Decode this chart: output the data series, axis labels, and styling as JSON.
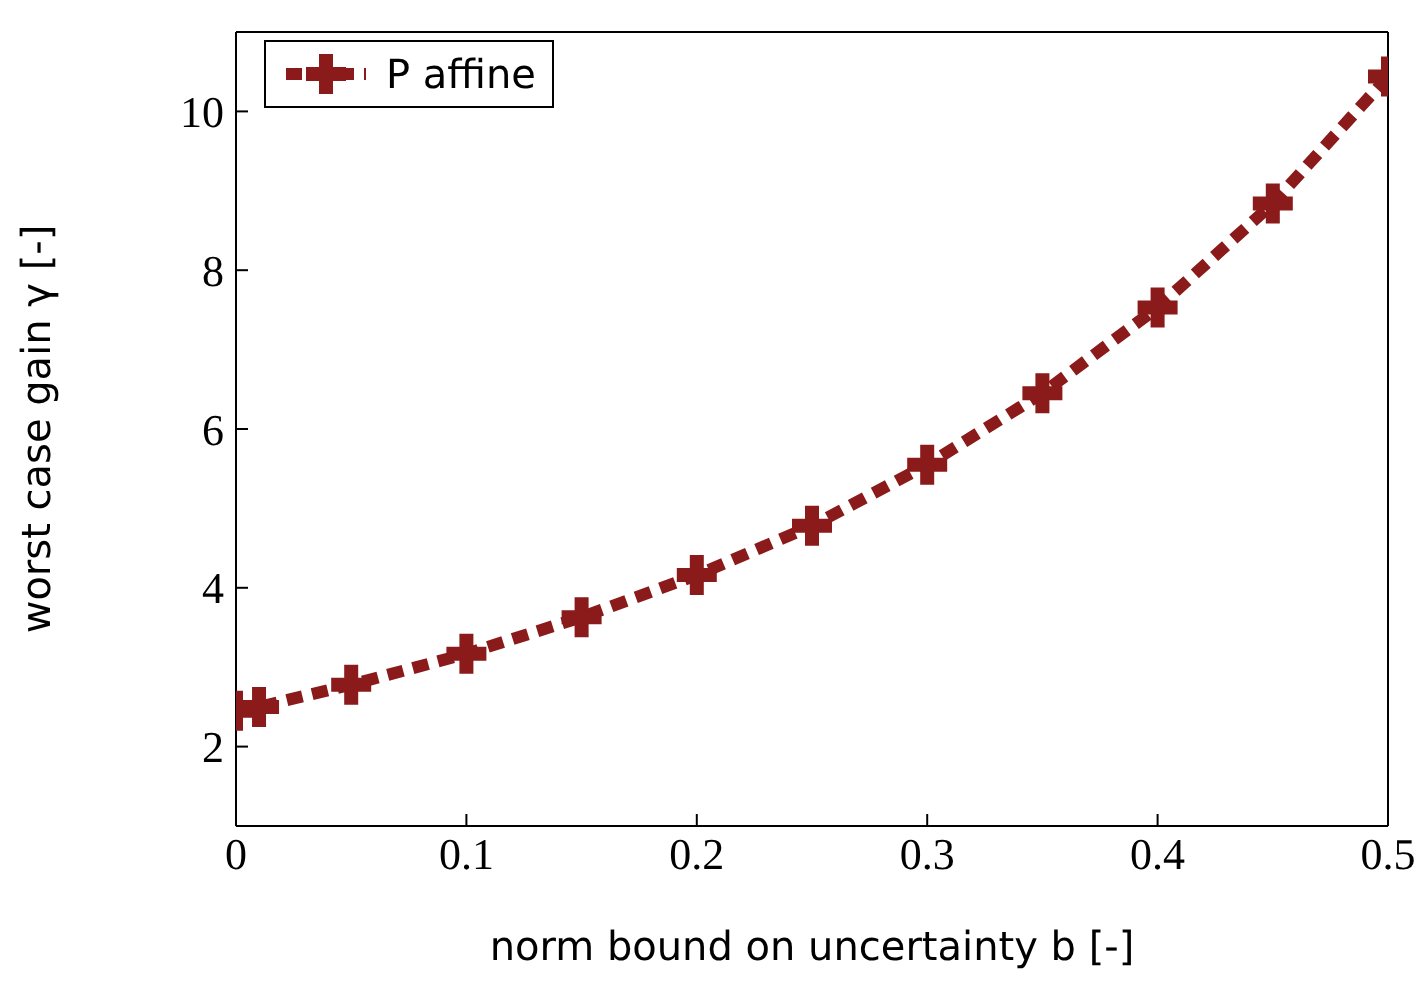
{
  "chart_data": {
    "type": "line",
    "xlabel": "norm bound on uncertainty b [-]",
    "ylabel": "worst case gain γ [-]",
    "x": [
      0,
      0.01,
      0.05,
      0.1,
      0.15,
      0.2,
      0.25,
      0.3,
      0.35,
      0.4,
      0.45,
      0.5
    ],
    "series": [
      {
        "name": "P affine",
        "color": "#8b1a1a",
        "values": [
          2.45,
          2.5,
          2.78,
          3.17,
          3.63,
          4.16,
          4.78,
          5.55,
          6.45,
          7.53,
          8.84,
          10.44
        ]
      }
    ],
    "xlim": [
      0,
      0.5
    ],
    "xticks": [
      0,
      0.1,
      0.2,
      0.3,
      0.4,
      0.5
    ],
    "ylim": [
      1,
      11
    ],
    "yticks": [
      2,
      4,
      6,
      8,
      10
    ],
    "grid": false,
    "legend": "top left",
    "marker": "cross",
    "line_style": "dashed"
  }
}
